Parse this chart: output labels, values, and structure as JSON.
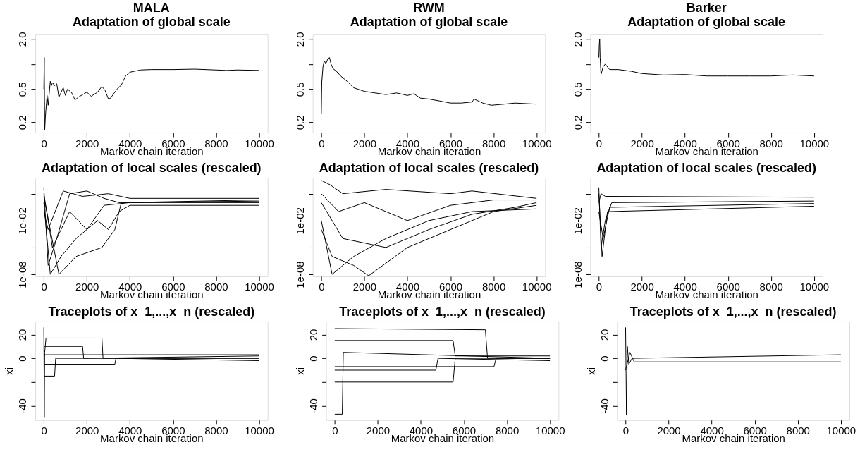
{
  "chart_data": [
    {
      "type": "line",
      "title": "MALA",
      "subtitle": "Adaptation of global scale",
      "xlabel": "Markov chain iteration",
      "log": "y",
      "xlim": [
        -400,
        10400
      ],
      "xticks": [
        0,
        2000,
        4000,
        6000,
        8000,
        10000
      ],
      "ylim": [
        0.15,
        2.3
      ],
      "yticks": [
        0.2,
        0.5,
        {
          "value": 1,
          "label": null
        },
        {
          "value": 2,
          "label": "2.0"
        }
      ],
      "grid": false,
      "series": [
        {
          "color": "#000000",
          "x": [
            0,
            20,
            40,
            80,
            150,
            200,
            300,
            350,
            400,
            500,
            600,
            700,
            900,
            1000,
            1100,
            1300,
            1450,
            1600,
            2000,
            2200,
            2500,
            2700,
            2850,
            3000,
            3100,
            3400,
            3600,
            3800,
            4000,
            4500,
            5000,
            6000,
            7000,
            8000,
            8500,
            9000,
            10000
          ],
          "values": [
            0.5,
            1.2,
            0.16,
            0.25,
            0.42,
            0.32,
            0.62,
            0.55,
            0.6,
            0.55,
            0.58,
            0.4,
            0.52,
            0.42,
            0.5,
            0.45,
            0.37,
            0.4,
            0.46,
            0.41,
            0.46,
            0.54,
            0.48,
            0.38,
            0.39,
            0.5,
            0.56,
            0.72,
            0.8,
            0.85,
            0.86,
            0.86,
            0.87,
            0.85,
            0.84,
            0.85,
            0.84
          ]
        }
      ]
    },
    {
      "type": "line",
      "title": "RWM",
      "subtitle": "Adaptation of global scale",
      "xlabel": "Markov chain iteration",
      "log": "y",
      "xlim": [
        -400,
        10400
      ],
      "xticks": [
        0,
        2000,
        4000,
        6000,
        8000,
        10000
      ],
      "ylim": [
        0.15,
        2.3
      ],
      "yticks": [
        0.2,
        0.5,
        {
          "value": 1,
          "label": null
        },
        {
          "value": 2,
          "label": "2.0"
        }
      ],
      "grid": false,
      "series": [
        {
          "color": "#000000",
          "x": [
            0,
            20,
            80,
            150,
            200,
            300,
            380,
            450,
            550,
            700,
            900,
            1200,
            1500,
            2000,
            2500,
            3000,
            3500,
            4000,
            4300,
            4600,
            5000,
            5500,
            6000,
            6500,
            7000,
            7100,
            7500,
            7900,
            8500,
            9000,
            10000
          ],
          "values": [
            0.25,
            0.6,
            0.95,
            1.1,
            1.0,
            1.15,
            1.2,
            1.0,
            0.88,
            0.82,
            0.72,
            0.62,
            0.52,
            0.47,
            0.45,
            0.43,
            0.45,
            0.42,
            0.44,
            0.39,
            0.38,
            0.36,
            0.34,
            0.34,
            0.35,
            0.38,
            0.34,
            0.32,
            0.33,
            0.34,
            0.33
          ]
        }
      ]
    },
    {
      "type": "line",
      "title": "Barker",
      "subtitle": "Adaptation of global scale",
      "xlabel": "Markov chain iteration",
      "log": "y",
      "xlim": [
        -400,
        10400
      ],
      "xticks": [
        0,
        2000,
        4000,
        6000,
        8000,
        10000
      ],
      "ylim": [
        0.15,
        2.3
      ],
      "yticks": [
        0.2,
        0.5,
        {
          "value": 1,
          "label": null
        },
        {
          "value": 2,
          "label": "2.0"
        }
      ],
      "grid": false,
      "series": [
        {
          "color": "#000000",
          "x": [
            0,
            20,
            40,
            60,
            100,
            200,
            300,
            500,
            900,
            1500,
            2000,
            3000,
            4000,
            5000,
            6000,
            7000,
            8000,
            9000,
            10000
          ],
          "values": [
            1.2,
            1.7,
            2.0,
            1.2,
            0.75,
            0.93,
            1.0,
            0.86,
            0.86,
            0.82,
            0.77,
            0.74,
            0.75,
            0.72,
            0.72,
            0.72,
            0.72,
            0.74,
            0.72
          ]
        }
      ]
    },
    {
      "type": "line",
      "title": "Adaptation of local scales (rescaled)",
      "xlabel": "Markov chain iteration",
      "log": "y",
      "xlim": [
        -400,
        10400
      ],
      "xticks": [
        0,
        2000,
        4000,
        6000,
        8000,
        10000
      ],
      "ylim": [
        6e-09,
        600
      ],
      "yticks": [
        {
          "value": 1e-08,
          "label": "1e-08"
        },
        {
          "value": 1e-05,
          "label": null
        },
        {
          "value": 0.01,
          "label": "1e-02"
        },
        {
          "value": 10,
          "label": null
        }
      ],
      "grid": false,
      "series": [
        {
          "color": "#000000",
          "x": [
            0,
            200,
            600,
            1200,
            2000,
            2800,
            3500,
            10000
          ],
          "values": [
            50,
            1e-07,
            0.0001,
            10,
            20,
            3,
            1,
            1.5
          ]
        },
        {
          "color": "#000000",
          "x": [
            0,
            300,
            800,
            1500,
            2500,
            3000,
            3500,
            4000,
            10000
          ],
          "values": [
            1,
            1e-08,
            1e-06,
            0.0001,
            0.01,
            0.001,
            0.1,
            0.5,
            0.5
          ]
        },
        {
          "color": "#000000",
          "x": [
            0,
            700,
            1500,
            2700,
            3300,
            3600,
            10000
          ],
          "values": [
            5,
            1e-08,
            1e-06,
            1e-05,
            0.001,
            1,
            2
          ]
        },
        {
          "color": "#000000",
          "x": [
            0,
            400,
            1200,
            2000,
            2800,
            4000,
            10000
          ],
          "values": [
            10,
            1e-05,
            0.1,
            0.001,
            0.5,
            1,
            1
          ]
        },
        {
          "color": "#000000",
          "x": [
            0,
            200,
            900,
            1800,
            3000,
            4000,
            10000
          ],
          "values": [
            0.1,
            0.001,
            20,
            5,
            10,
            3,
            3
          ]
        }
      ]
    },
    {
      "type": "line",
      "title": "Adaptation of local scales (rescaled)",
      "xlabel": "Markov chain iteration",
      "log": "y",
      "xlim": [
        -400,
        10400
      ],
      "xticks": [
        0,
        2000,
        4000,
        6000,
        8000,
        10000
      ],
      "ylim": [
        6e-09,
        600
      ],
      "yticks": [
        {
          "value": 1e-08,
          "label": "1e-08"
        },
        {
          "value": 1e-05,
          "label": null
        },
        {
          "value": 0.01,
          "label": "1e-02"
        },
        {
          "value": 10,
          "label": null
        }
      ],
      "grid": false,
      "series": [
        {
          "color": "#000000",
          "x": [
            0,
            400,
            1000,
            3000,
            6000,
            7000,
            10000
          ],
          "values": [
            300,
            100,
            10,
            30,
            10,
            20,
            3
          ]
        },
        {
          "color": "#000000",
          "x": [
            0,
            500,
            1500,
            2200,
            4000,
            6000,
            8000,
            10000
          ],
          "values": [
            0.001,
            1e-06,
            1e-07,
            7e-09,
            1e-05,
            0.001,
            0.1,
            0.5
          ]
        },
        {
          "color": "#000000",
          "x": [
            0,
            1000,
            3000,
            5000,
            7000,
            9000,
            10000
          ],
          "values": [
            1,
            0.0001,
            1e-05,
            0.001,
            0.05,
            0.3,
            1
          ]
        },
        {
          "color": "#000000",
          "x": [
            0,
            800,
            2000,
            4000,
            6000,
            8000,
            10000
          ],
          "values": [
            10,
            0.1,
            1,
            0.01,
            0.5,
            2,
            2
          ]
        },
        {
          "color": "#000000",
          "x": [
            0,
            500,
            1500,
            3000,
            5000,
            7000,
            10000
          ],
          "values": [
            0.01,
            1e-08,
            1e-06,
            0.0001,
            0.01,
            0.1,
            0.2
          ]
        }
      ]
    },
    {
      "type": "line",
      "title": "Adaptation of local scales (rescaled)",
      "xlabel": "Markov chain iteration",
      "log": "y",
      "xlim": [
        -400,
        10400
      ],
      "xticks": [
        0,
        2000,
        4000,
        6000,
        8000,
        10000
      ],
      "ylim": [
        6e-09,
        600
      ],
      "yticks": [
        {
          "value": 1e-08,
          "label": "1e-08"
        },
        {
          "value": 1e-05,
          "label": null
        },
        {
          "value": 0.01,
          "label": "1e-02"
        },
        {
          "value": 10,
          "label": null
        }
      ],
      "grid": false,
      "series": [
        {
          "color": "#000000",
          "x": [
            0,
            100,
            300,
            600,
            10000
          ],
          "values": [
            50,
            1e-05,
            0.01,
            1,
            1.5
          ]
        },
        {
          "color": "#000000",
          "x": [
            0,
            150,
            400,
            10000
          ],
          "values": [
            10,
            1e-06,
            0.1,
            0.4
          ]
        },
        {
          "color": "#000000",
          "x": [
            0,
            100,
            300,
            10000
          ],
          "values": [
            1,
            10,
            5,
            4
          ]
        },
        {
          "color": "#000000",
          "x": [
            0,
            200,
            500,
            10000
          ],
          "values": [
            0.1,
            0.0001,
            0.3,
            0.8
          ]
        }
      ]
    },
    {
      "type": "line",
      "title": "Traceplots of x_1,...,x_n (rescaled)",
      "xlabel": "Markov chain iteration",
      "ylabel": "xi",
      "xlim": [
        -400,
        10400
      ],
      "xticks": [
        0,
        2000,
        4000,
        6000,
        8000,
        10000
      ],
      "ylim": [
        -52,
        31
      ],
      "yticks": [
        -40,
        {
          "value": -20,
          "label": null
        },
        0,
        20
      ],
      "grid": false,
      "series": [
        {
          "color": "#000000",
          "x": [
            0,
            20,
            40,
            100,
            2700,
            2750,
            10000
          ],
          "values": [
            26,
            -50,
            5,
            17,
            17,
            0,
            0
          ]
        },
        {
          "color": "#000000",
          "x": [
            0,
            500,
            550,
            10000
          ],
          "values": [
            -15,
            -15,
            0,
            0
          ]
        },
        {
          "color": "#000000",
          "x": [
            0,
            1800,
            1850,
            10000
          ],
          "values": [
            10,
            10,
            0,
            2
          ]
        },
        {
          "color": "#000000",
          "x": [
            0,
            3300,
            3350,
            10000
          ],
          "values": [
            -5,
            -5,
            0,
            -2
          ]
        },
        {
          "color": "#000000",
          "x": [
            0,
            10000
          ],
          "values": [
            3,
            3
          ]
        }
      ]
    },
    {
      "type": "line",
      "title": "Traceplots of x_1,...,x_n (rescaled)",
      "xlabel": "Markov chain iteration",
      "ylabel": "xi",
      "xlim": [
        -400,
        10400
      ],
      "xticks": [
        0,
        2000,
        4000,
        6000,
        8000,
        10000
      ],
      "ylim": [
        -52,
        31
      ],
      "yticks": [
        -40,
        {
          "value": -20,
          "label": null
        },
        0,
        20
      ],
      "grid": false,
      "series": [
        {
          "color": "#000000",
          "x": [
            0,
            7000,
            7100,
            10000
          ],
          "values": [
            25,
            24,
            0,
            0
          ]
        },
        {
          "color": "#000000",
          "x": [
            0,
            350,
            400,
            10000
          ],
          "values": [
            -47,
            -47,
            5,
            0
          ]
        },
        {
          "color": "#000000",
          "x": [
            0,
            5500,
            5600,
            10000
          ],
          "values": [
            -20,
            -20,
            0,
            0
          ]
        },
        {
          "color": "#000000",
          "x": [
            0,
            5500,
            5600,
            10000
          ],
          "values": [
            15,
            15,
            2,
            2
          ]
        },
        {
          "color": "#000000",
          "x": [
            0,
            4700,
            4800,
            10000
          ],
          "values": [
            -10,
            -10,
            0,
            -2
          ]
        },
        {
          "color": "#000000",
          "x": [
            0,
            7400,
            7500,
            10000
          ],
          "values": [
            -7,
            -7,
            0,
            0
          ]
        }
      ]
    },
    {
      "type": "line",
      "title": "Traceplots of x_1,...,x_n (rescaled)",
      "xlabel": "Markov chain iteration",
      "ylabel": "xi",
      "xlim": [
        -400,
        10400
      ],
      "xticks": [
        0,
        2000,
        4000,
        6000,
        8000,
        10000
      ],
      "ylim": [
        -52,
        31
      ],
      "yticks": [
        -40,
        {
          "value": -20,
          "label": null
        },
        0,
        20
      ],
      "grid": false,
      "series": [
        {
          "color": "#000000",
          "x": [
            0,
            40,
            80,
            150,
            300,
            10000
          ],
          "values": [
            26,
            -48,
            10,
            -5,
            0,
            3
          ]
        },
        {
          "color": "#000000",
          "x": [
            0,
            200,
            400,
            10000
          ],
          "values": [
            -10,
            5,
            -3,
            -3
          ]
        }
      ]
    }
  ]
}
